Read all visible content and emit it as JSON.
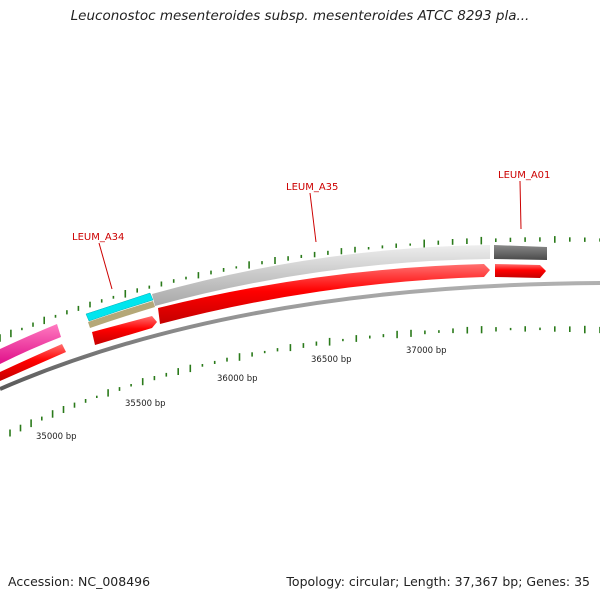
{
  "title": "Leuconostoc mesenteroides subsp. mesenteroides ATCC 8293 pla...",
  "footer": {
    "accession": "Accession: NC_008496",
    "stats": "Topology: circular; Length: 37,367 bp; Genes: 35"
  },
  "gene_labels": [
    {
      "name": "LEUM_A34"
    },
    {
      "name": "LEUM_A35"
    },
    {
      "name": "LEUM_A01"
    }
  ],
  "ruler_labels": [
    "35000 bp",
    "35500 bp",
    "36000 bp",
    "36500 bp",
    "37000 bp"
  ],
  "colors": {
    "backbone": "#7f7f7f",
    "forward_gene": "#ff0000",
    "reverse_gene": "#ff0000",
    "orf_light": "#c8c8c8",
    "orf_dark": "#666666",
    "cyan_feature": "#00e5ee",
    "tan_feature": "#b5a878",
    "pink_feature": "#ff1493",
    "gc_ticks": "#2a7a1a"
  }
}
